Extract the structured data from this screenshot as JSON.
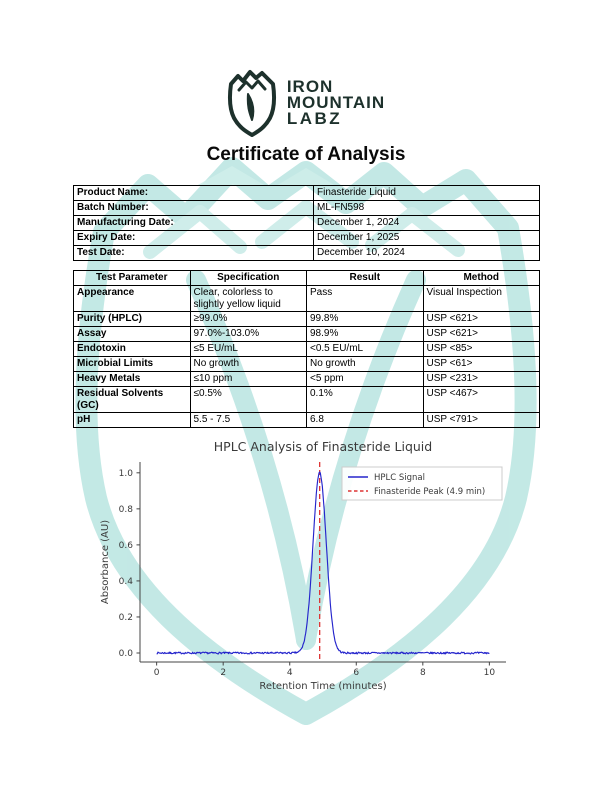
{
  "page": {
    "background": "#ffffff",
    "watermark_color": "#b9e5e1",
    "watermark_color_light": "#cfeeea"
  },
  "logo": {
    "brand_line1": "IRON",
    "brand_line2": "MOUNTAIN",
    "brand_line3": "LABZ",
    "color": "#1d312c",
    "icon": "mountain-shield-icon"
  },
  "document_title": "Certificate of Analysis",
  "product_info": {
    "rows": [
      {
        "label": "Product Name:",
        "value": "Finasteride Liquid"
      },
      {
        "label": "Batch Number:",
        "value": "ML-FN598"
      },
      {
        "label": "Manufacturing Date:",
        "value": "December 1, 2024"
      },
      {
        "label": "Expiry Date:",
        "value": "December 1, 2025"
      },
      {
        "label": "Test Date:",
        "value": "December 10, 2024"
      }
    ]
  },
  "results_table": {
    "headers": [
      "Test Parameter",
      "Specification",
      "Result",
      "Method"
    ],
    "rows": [
      {
        "parameter": "Appearance",
        "specification": "Clear, colorless to slightly yellow liquid",
        "result": "Pass",
        "method": "Visual Inspection"
      },
      {
        "parameter": "Purity (HPLC)",
        "specification": "≥99.0%",
        "result": "99.8%",
        "method": "USP <621>"
      },
      {
        "parameter": "Assay",
        "specification": "97.0%-103.0%",
        "result": "98.9%",
        "method": "USP <621>"
      },
      {
        "parameter": "Endotoxin",
        "specification": "≤5 EU/mL",
        "result": "<0.5 EU/mL",
        "method": "USP <85>"
      },
      {
        "parameter": "Microbial Limits",
        "specification": "No growth",
        "result": "No growth",
        "method": "USP <61>"
      },
      {
        "parameter": "Heavy Metals",
        "specification": "≤10 ppm",
        "result": "<5 ppm",
        "method": "USP <231>"
      },
      {
        "parameter": "Residual Solvents (GC)",
        "specification": "≤0.5%",
        "result": "0.1%",
        "method": "USP <467>"
      },
      {
        "parameter": "pH",
        "specification": "5.5 - 7.5",
        "result": "6.8",
        "method": "USP <791>"
      }
    ]
  },
  "chart_data": {
    "type": "line",
    "title": "HPLC Analysis of Finasteride Liquid",
    "xlabel": "Retention Time (minutes)",
    "ylabel": "Absorbance (AU)",
    "xlim": [
      -0.5,
      10.5
    ],
    "ylim": [
      -0.05,
      1.06
    ],
    "xticks": [
      0,
      2,
      4,
      6,
      8,
      10
    ],
    "yticks": [
      0.0,
      0.2,
      0.4,
      0.6,
      0.8,
      1.0
    ],
    "grid": false,
    "legend_position": "upper right",
    "legend_entries": [
      "HPLC Signal",
      "Finasteride Peak (4.9 min)"
    ],
    "series": [
      {
        "name": "HPLC Signal",
        "color": "#2525cc",
        "style": "solid",
        "model": "gaussian",
        "peak_center": 4.9,
        "peak_height": 1.0,
        "peak_sigma": 0.2,
        "baseline": 0.0,
        "noise_amplitude": 0.005,
        "x_start": 0,
        "x_end": 10
      }
    ],
    "annotations": [
      {
        "type": "vline",
        "x": 4.9,
        "color": "#dd3333",
        "style": "dashed",
        "label": "Finasteride Peak (4.9 min)"
      }
    ],
    "text_color": "#3a3a3a",
    "spine_color": "#444444"
  }
}
